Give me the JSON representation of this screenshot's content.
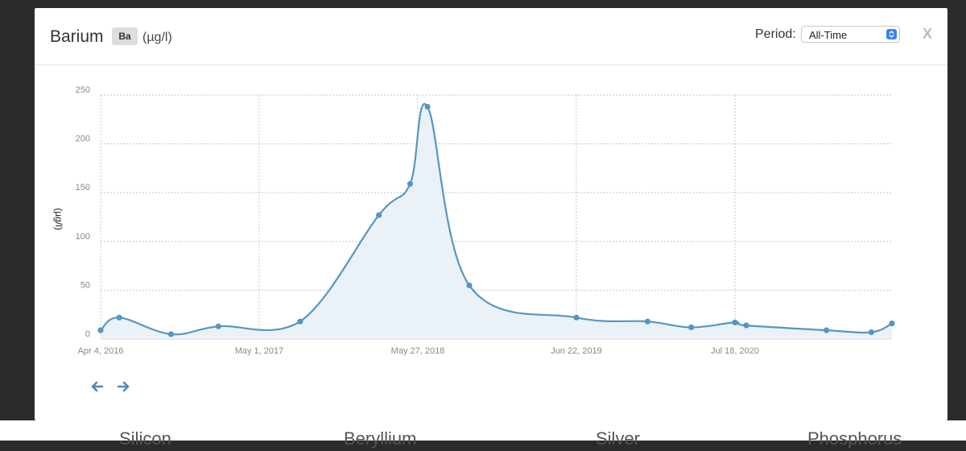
{
  "background_labels": [
    "Silicon",
    "Beryllium",
    "Silver",
    "Phosphorus"
  ],
  "modal": {
    "title": "Barium",
    "symbol": "Ba",
    "unit": "(µg/l)",
    "period_label": "Period:",
    "period_value": "All-Time",
    "close_label": "X"
  },
  "icons": {
    "prev": "arrow-left-icon",
    "next": "arrow-right-icon",
    "select": "select-stepper-icon"
  },
  "colors": {
    "line": "#5596c2",
    "fill": "#ebf2f7",
    "grid": "#c8c8c8",
    "accent": "#3b82f6"
  },
  "chart_data": {
    "type": "area",
    "ylabel": "(µg/l)",
    "ylim": [
      0,
      250
    ],
    "yticks": [
      0,
      50,
      100,
      150,
      200,
      250
    ],
    "xticks": [
      "Apr 4, 2016",
      "May 1, 2017",
      "May 27, 2018",
      "Jun 22, 2019",
      "Jul 18, 2020"
    ],
    "grid": true,
    "x": [
      "2016-04-04",
      "2016-05-20",
      "2016-09-25",
      "2017-01-20",
      "2017-08-10",
      "2018-02-20",
      "2018-05-08",
      "2018-06-20",
      "2018-10-01",
      "2019-06-22",
      "2019-12-15",
      "2020-04-01",
      "2020-07-18",
      "2020-08-15",
      "2021-03-01",
      "2021-06-20",
      "2021-09-15"
    ],
    "values": [
      9,
      22,
      5,
      13,
      18,
      127,
      159,
      238,
      55,
      22,
      18,
      12,
      17,
      14,
      9,
      7,
      16
    ],
    "series": [
      {
        "values": [
          9,
          22,
          5,
          13,
          18,
          127,
          159,
          238,
          55,
          22,
          18,
          12,
          17,
          14,
          9,
          7,
          16
        ]
      }
    ]
  }
}
